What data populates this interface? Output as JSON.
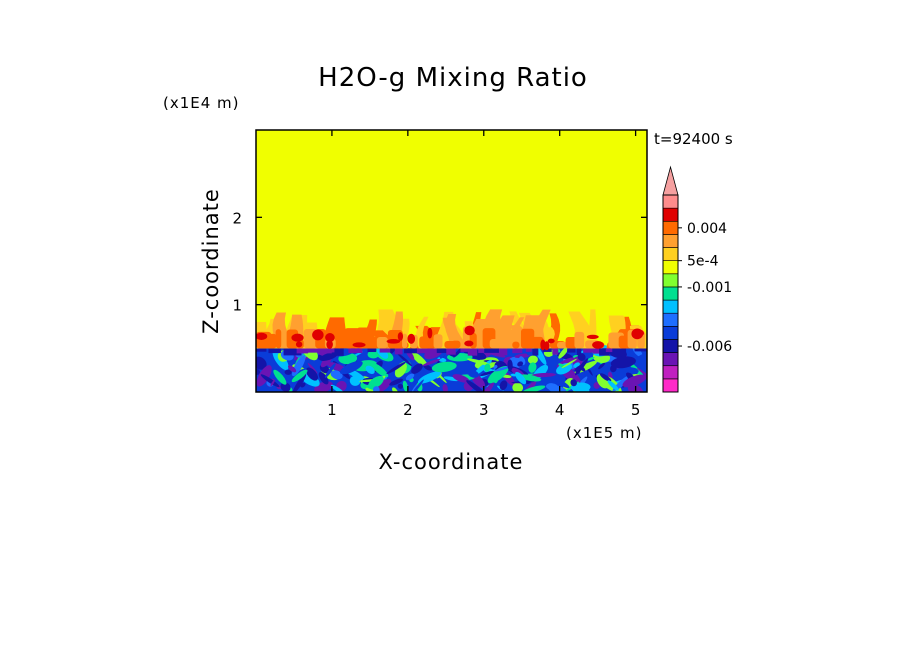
{
  "chart_data": {
    "type": "heatmap",
    "title": "H2O-g Mixing Ratio",
    "xlabel": "X-coordinate",
    "ylabel": "Z-coordinate",
    "x_scale_label": "(x1E5 m)",
    "y_scale_label": "(x1E4 m)",
    "time_label": "t=92400 s",
    "xlim": [
      0,
      5.15
    ],
    "ylim": [
      0,
      3
    ],
    "x_ticks": [
      1,
      2,
      3,
      4,
      5
    ],
    "x_tick_labels": [
      "1",
      "2",
      "3",
      "4",
      "5"
    ],
    "y_ticks": [
      1,
      2
    ],
    "y_tick_labels": [
      "1",
      "2"
    ],
    "background_color": "#f0ff00",
    "boundary_layer_top": 0.5,
    "turbulent_layer_top": 0.95,
    "colorbar": {
      "levels": [
        {
          "color": "#ff2ac8"
        },
        {
          "color": "#c020c0"
        },
        {
          "color": "#6a14b4"
        },
        {
          "color": "#1414a8"
        },
        {
          "color": "#0a3cd8"
        },
        {
          "color": "#1e6eff"
        },
        {
          "color": "#00c0ff"
        },
        {
          "color": "#00e090"
        },
        {
          "color": "#80ff30"
        },
        {
          "color": "#f0ff00"
        },
        {
          "color": "#ffd020"
        },
        {
          "color": "#ffa030"
        },
        {
          "color": "#ff6a00"
        },
        {
          "color": "#e00000"
        },
        {
          "color": "#ff8c8c"
        }
      ],
      "extend_color": "#f5a0a0",
      "tick_labels": [
        {
          "text": "0.004",
          "level": 12.5
        },
        {
          "text": "5e-4",
          "level": 10
        },
        {
          "text": "-0.001",
          "level": 8
        },
        {
          "text": "-0.006",
          "level": 3.5
        }
      ]
    }
  }
}
